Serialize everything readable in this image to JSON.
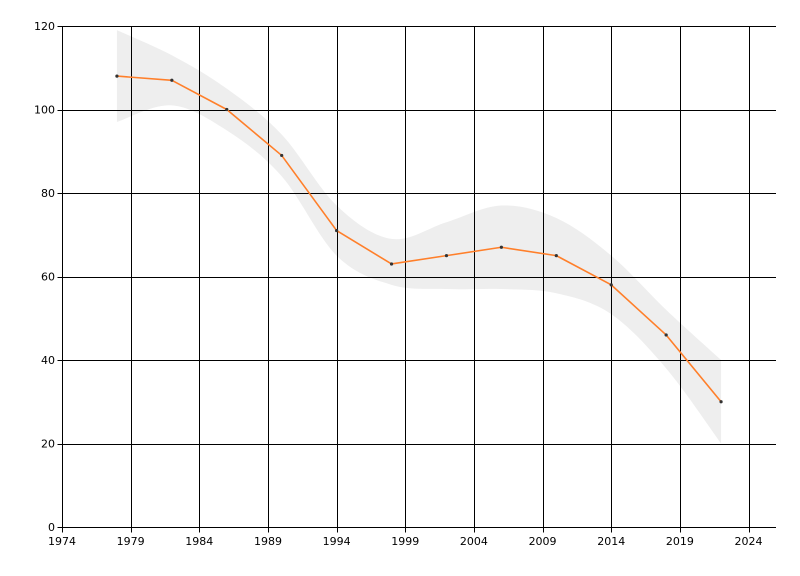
{
  "chart_data": {
    "type": "line",
    "title": "",
    "xlabel": "",
    "ylabel": "",
    "xlim": [
      1974,
      2026
    ],
    "ylim": [
      0,
      120
    ],
    "x_ticks": [
      1974,
      1979,
      1984,
      1989,
      1994,
      1999,
      2004,
      2009,
      2014,
      2019,
      2024
    ],
    "y_ticks": [
      0,
      20,
      40,
      60,
      80,
      100,
      120
    ],
    "grid": true,
    "legend": "none",
    "series": [
      {
        "color": "#ff7f2a",
        "x": [
          1978,
          1982,
          1986,
          1990,
          1994,
          1998,
          2002,
          2006,
          2010,
          2014,
          2018,
          2022
        ],
        "y": [
          108,
          107,
          100,
          89,
          71,
          63,
          65,
          67,
          65,
          58,
          46,
          30
        ]
      }
    ],
    "confidence_band": {
      "color": "#eeeeee",
      "x": [
        1978,
        1982,
        1986,
        1990,
        1994,
        1998,
        2002,
        2006,
        2010,
        2014,
        2018,
        2022
      ],
      "upper": [
        119,
        113,
        105,
        94,
        77,
        69,
        73,
        77,
        74,
        65,
        52,
        40
      ],
      "lower": [
        97,
        101,
        95,
        84,
        65,
        58,
        57,
        57,
        56,
        51,
        38,
        20
      ]
    }
  }
}
